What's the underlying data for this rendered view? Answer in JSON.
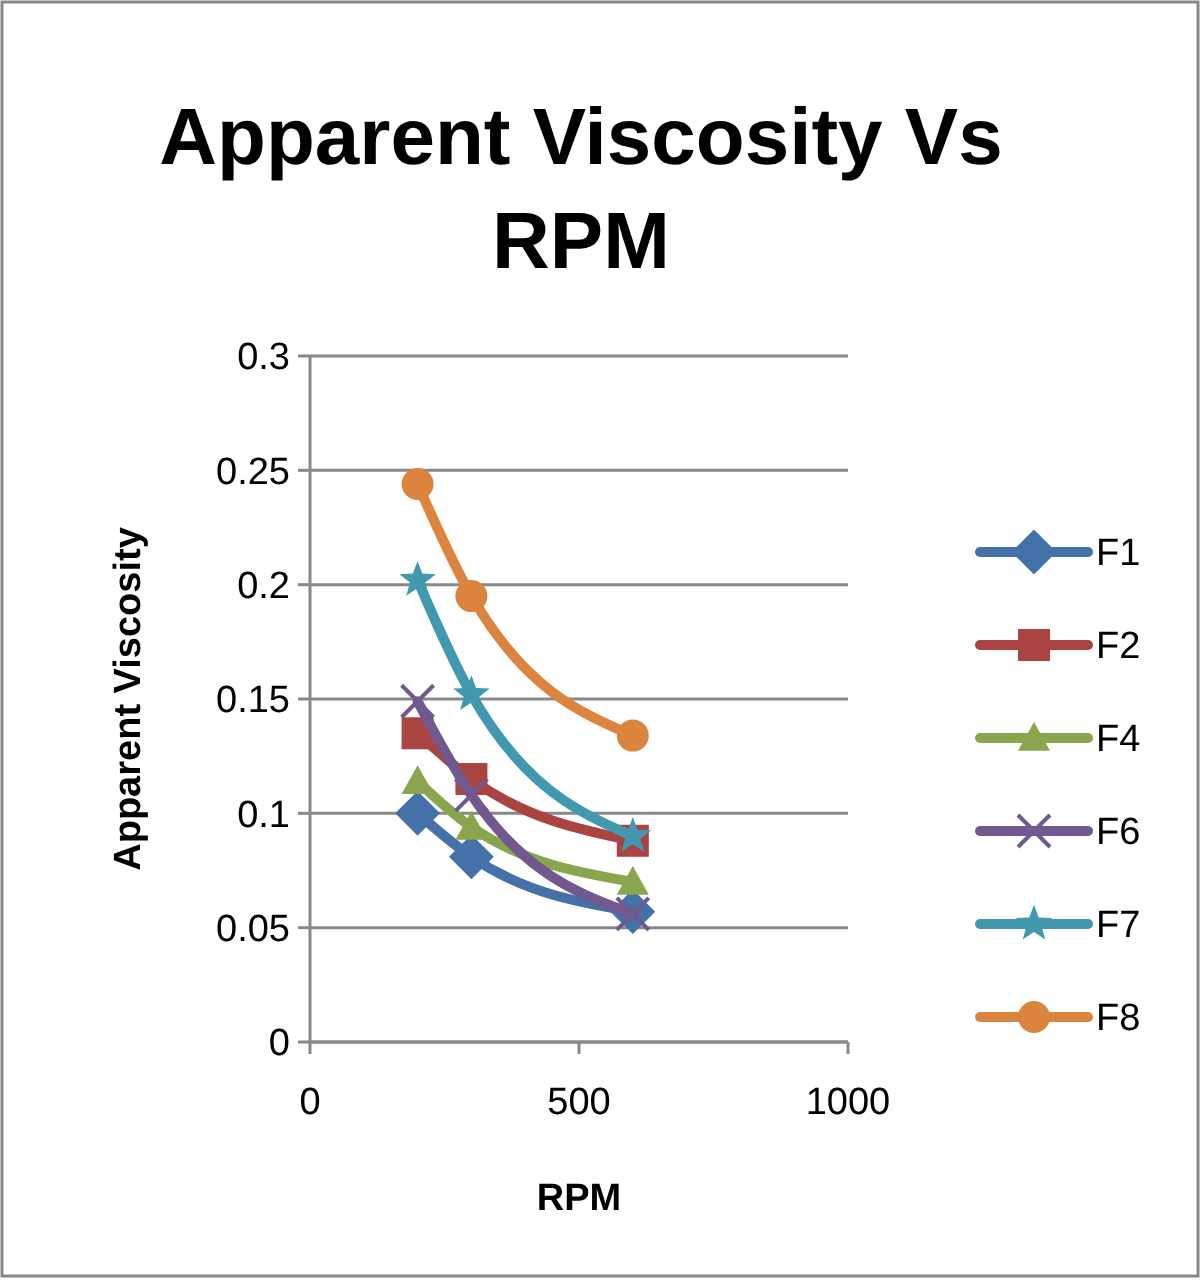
{
  "chart_data": {
    "type": "line",
    "title": "Apparent Viscosity Vs RPM",
    "xlabel": "RPM",
    "ylabel": "Apparent Viscosity",
    "x": [
      200,
      300,
      600
    ],
    "xlim": [
      0,
      1000
    ],
    "xticks": [
      0,
      500,
      1000
    ],
    "ylim": [
      0,
      0.3
    ],
    "yticks": [
      0,
      0.05,
      0.1,
      0.15,
      0.2,
      0.25,
      0.3
    ],
    "grid": "y",
    "legend": "right",
    "series": [
      {
        "name": "F1",
        "color": "#4472a8",
        "marker": "diamond",
        "values": [
          0.1,
          0.081,
          0.057
        ]
      },
      {
        "name": "F2",
        "color": "#a94441",
        "marker": "square",
        "values": [
          0.135,
          0.115,
          0.088
        ]
      },
      {
        "name": "F4",
        "color": "#89a54e",
        "marker": "triangle",
        "values": [
          0.114,
          0.094,
          0.07
        ]
      },
      {
        "name": "F6",
        "color": "#71588f",
        "marker": "cross",
        "values": [
          0.149,
          0.108,
          0.056
        ]
      },
      {
        "name": "F7",
        "color": "#4198af",
        "marker": "star",
        "values": [
          0.202,
          0.152,
          0.09
        ]
      },
      {
        "name": "F8",
        "color": "#db843d",
        "marker": "circle",
        "values": [
          0.244,
          0.195,
          0.134
        ]
      }
    ]
  }
}
